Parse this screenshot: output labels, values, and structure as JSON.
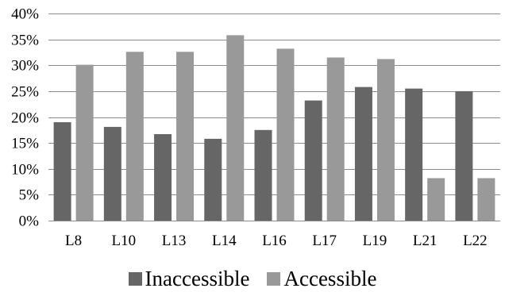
{
  "chart_data": {
    "type": "bar",
    "categories": [
      "L8",
      "L10",
      "L13",
      "L14",
      "L16",
      "L17",
      "L19",
      "L21",
      "L22"
    ],
    "series": [
      {
        "name": "Inaccessible",
        "color": "#666666",
        "values": [
          19.0,
          18.1,
          16.7,
          15.8,
          17.5,
          23.2,
          25.8,
          25.5,
          25.0
        ]
      },
      {
        "name": "Accessible",
        "color": "#999999",
        "values": [
          30.1,
          32.6,
          32.6,
          35.8,
          33.2,
          31.5,
          31.2,
          8.2,
          8.2
        ]
      }
    ],
    "ylim": [
      0,
      40
    ],
    "yticks": [
      0,
      5,
      10,
      15,
      20,
      25,
      30,
      35,
      40
    ],
    "ytick_labels": [
      "0%",
      "5%",
      "10%",
      "15%",
      "20%",
      "25%",
      "30%",
      "35%",
      "40%"
    ],
    "grid": true,
    "legend_position": "bottom",
    "title": "",
    "xlabel": "",
    "ylabel": ""
  }
}
